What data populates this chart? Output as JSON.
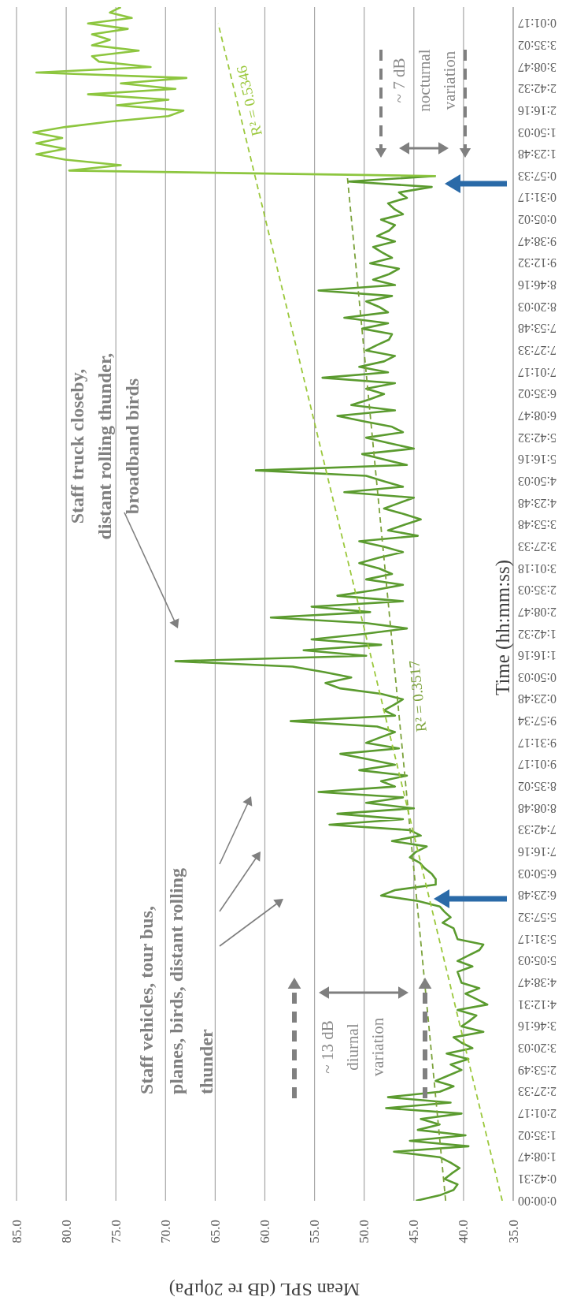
{
  "chart_data": {
    "type": "line",
    "orientation": "horizontal",
    "xlabel": "Mean SPL (dB re 20μPa)",
    "ylabel": "Time (hh:mm:ss)",
    "categories": [
      null,
      null,
      null,
      "0:01:17",
      null,
      null,
      null,
      "3:35:02",
      null,
      null,
      null,
      "3:08:47",
      null,
      null,
      null,
      "2:42:32",
      null,
      null,
      null,
      "2:16:16",
      null,
      null,
      null,
      "1:50:03",
      null,
      null,
      null,
      "1:23:48",
      null,
      null,
      null,
      "0:57:33",
      null,
      null,
      null,
      "0:31:17",
      null,
      null,
      null,
      "0:05:02",
      null,
      null,
      null,
      "9:38:47",
      null,
      null,
      null,
      "9:12:32",
      null,
      null,
      null,
      "8:46:16",
      null,
      null,
      null,
      "8:20:03",
      null,
      null,
      null,
      "7:53:48",
      null,
      null,
      null,
      "7:27:33",
      null,
      null,
      null,
      "7:01:17",
      null,
      null,
      null,
      "6:35:02",
      null,
      null,
      null,
      "6:08:47",
      null,
      null,
      null,
      "5:42:32",
      null,
      null,
      null,
      "5:16:16",
      null,
      null,
      null,
      "4:50:03",
      null,
      null,
      null,
      "4:23:48",
      null,
      null,
      null,
      "3:53:48",
      null,
      null,
      null,
      "3:27:33",
      null,
      null,
      null,
      "3:01:18",
      null,
      null,
      null,
      "2:35:03",
      null,
      null,
      null,
      "2:08:47",
      null,
      null,
      null,
      "1:42:32",
      null,
      null,
      null,
      "1:16:16",
      null,
      null,
      null,
      "0:50:03",
      null,
      null,
      null,
      "0:23:48",
      null,
      null,
      null,
      "9:57:34",
      null,
      null,
      null,
      "9:31:17",
      null,
      null,
      null,
      "9:01:17",
      null,
      null,
      null,
      "8:35:02",
      null,
      null,
      null,
      "8:08:48",
      null,
      null,
      null,
      "7:42:33",
      null,
      null,
      null,
      "7:16:16",
      null,
      null,
      null,
      "6:50:03",
      null,
      null,
      null,
      "6:23:48",
      null,
      null,
      null,
      "5:57:32",
      null,
      null,
      null,
      "5:31:17",
      null,
      null,
      null,
      "5:05:03",
      null,
      null,
      null,
      "4:38:47",
      null,
      null,
      null,
      "4:12:31",
      null,
      null,
      null,
      "3:46:16",
      null,
      null,
      null,
      "3:20:03",
      null,
      null,
      null,
      "2:53:49",
      null,
      null,
      null,
      "2:27:33",
      null,
      null,
      null,
      "2:01:17",
      null,
      null,
      null,
      "1:35:02",
      null,
      null,
      null,
      "1:08:47",
      null,
      null,
      null,
      "0:42:31",
      null,
      null,
      null,
      "0:00:00"
    ],
    "xlim": [
      85,
      35
    ],
    "xticks": [
      {
        "value": 85,
        "label": "85.0"
      },
      {
        "value": 80,
        "label": "80.0"
      },
      {
        "value": 75,
        "label": "75.0"
      },
      {
        "value": 70,
        "label": "70.0"
      },
      {
        "value": 65,
        "label": "65.0"
      },
      {
        "value": 60,
        "label": "60.0"
      },
      {
        "value": 55,
        "label": "55.0"
      },
      {
        "value": 50,
        "label": "50.0"
      },
      {
        "value": 45,
        "label": "45.0"
      },
      {
        "value": 40,
        "label": "40.0"
      },
      {
        "value": 35,
        "label": "35.0"
      }
    ],
    "grid": "x",
    "marker": "none",
    "series": [
      {
        "color": "#5b9b2f",
        "line_style": "solid",
        "values": [
          null,
          null,
          null,
          null,
          null,
          null,
          null,
          null,
          null,
          null,
          null,
          null,
          null,
          null,
          null,
          null,
          null,
          null,
          null,
          null,
          null,
          null,
          null,
          null,
          null,
          null,
          null,
          null,
          null,
          null,
          null,
          42.8,
          51.6,
          43.2,
          46.5,
          45.7,
          47.6,
          47.0,
          46.1,
          48.3,
          46.9,
          47.5,
          48.7,
          46.9,
          49.1,
          48.2,
          47.2,
          49.4,
          46.5,
          47.5,
          49.1,
          46.9,
          54.6,
          47.2,
          49.8,
          48.5,
          47.6,
          52.0,
          47.6,
          50.2,
          47.2,
          47.5,
          48.7,
          49.8,
          46.9,
          48.0,
          50.5,
          47.6,
          54.2,
          46.9,
          49.8,
          48.0,
          49.5,
          51.3,
          46.9,
          52.7,
          50.0,
          47.2,
          46.1,
          49.8,
          47.5,
          45.0,
          50.2,
          48.0,
          45.7,
          60.9,
          49.8,
          48.0,
          46.1,
          52.0,
          45.0,
          46.5,
          48.0,
          46.0,
          44.3,
          46.0,
          47.6,
          44.6,
          50.5,
          48.0,
          46.1,
          48.5,
          50.5,
          48.5,
          47.2,
          49.8,
          46.1,
          49.1,
          52.7,
          46.1,
          55.3,
          49.4,
          59.4,
          49.8,
          45.7,
          50.0,
          55.3,
          48.3,
          56.1,
          49.8,
          69.0,
          57.2,
          54.0,
          51.3,
          53.9,
          52.4,
          48.3,
          46.1,
          47.0,
          48.0,
          46.9,
          57.4,
          48.7,
          46.9,
          48.4,
          49.8,
          46.5,
          52.4,
          49.6,
          46.9,
          50.5,
          45.7,
          48.3,
          46.9,
          54.6,
          46.1,
          49.8,
          45.0,
          52.7,
          46.1,
          53.5,
          45.4,
          44.3,
          47.2,
          43.7,
          44.8,
          45.4,
          44.4,
          43.9,
          43.2,
          42.8,
          42.8,
          46.9,
          48.3,
          44.6,
          42.4,
          41.9,
          41.3,
          42.1,
          41.0,
          40.8,
          40.6,
          38.0,
          38.4,
          39.5,
          40.6,
          39.1,
          40.6,
          40.4,
          40.2,
          38.4,
          39.8,
          38.7,
          37.6,
          40.6,
          38.7,
          39.4,
          40.2,
          38.0,
          41.0,
          40.2,
          39.1,
          41.7,
          39.5,
          41.3,
          40.2,
          41.5,
          42.8,
          41.0,
          42.4,
          47.6,
          41.3,
          47.8,
          40.2,
          44.3,
          42.4,
          44.6,
          39.8,
          45.4,
          39.5,
          47.0,
          42.4,
          41.3,
          40.4,
          41.2,
          41.9,
          40.6,
          41.0,
          42.4,
          44.8
        ]
      },
      {
        "color": "#8dc63f",
        "line_style": "solid",
        "values": [
          74.5,
          75.6,
          73.4,
          77.8,
          73.8,
          77.4,
          75.6,
          77.4,
          72.7,
          77.4,
          76.7,
          71.5,
          83.0,
          67.9,
          74.5,
          69.0,
          77.8,
          69.7,
          74.9,
          68.2,
          69.7,
          75.6,
          80.1,
          83.3,
          80.4,
          83.0,
          80.1,
          83.0,
          80.1,
          74.5,
          79.7,
          42.8,
          null,
          null,
          null,
          null,
          null,
          null,
          null,
          null,
          null,
          null,
          null,
          null,
          null,
          null,
          null,
          null,
          null,
          null,
          null,
          null,
          null,
          null,
          null,
          null,
          null,
          null,
          null,
          null,
          null,
          null,
          null,
          null,
          null,
          null,
          null,
          null,
          null,
          null,
          null,
          null,
          null,
          null,
          null,
          null,
          null,
          null,
          null,
          null,
          null,
          null,
          null,
          null,
          null,
          null,
          null,
          null,
          null,
          null,
          null,
          null,
          null,
          null,
          null,
          null,
          null,
          null,
          null,
          null,
          null,
          null,
          null,
          null,
          null,
          null,
          null,
          null,
          null,
          null,
          null,
          null,
          null,
          null,
          null,
          null,
          null,
          null,
          null,
          null,
          null,
          null,
          null,
          null,
          null,
          null,
          null,
          null,
          null,
          null,
          null,
          null,
          null,
          null,
          null,
          null,
          null,
          null,
          null,
          null,
          null,
          null,
          null,
          null,
          null,
          null,
          null,
          null,
          null,
          null,
          null,
          null,
          null,
          null,
          null,
          null,
          null,
          null,
          null,
          null,
          null,
          null,
          null,
          null,
          null,
          null,
          null,
          null,
          null,
          null,
          null,
          null,
          null,
          null,
          null,
          null,
          null,
          null,
          null,
          null,
          null,
          null,
          null,
          null,
          null,
          null,
          null,
          null,
          null,
          null,
          null,
          null,
          null,
          null,
          null,
          null,
          null,
          null,
          null,
          null,
          null,
          null,
          null,
          null,
          null,
          null,
          null,
          null,
          null,
          null,
          null,
          null,
          null,
          null,
          null,
          null,
          null,
          null,
          null,
          null
        ]
      },
      {
        "type": "line",
        "color": "#7ba23a",
        "line_style": "dashed",
        "x": [
          "0:00:00",
          "0:57:33"
        ],
        "values": [
          41.8,
          51.7
        ]
      },
      {
        "type": "line",
        "color": "#9bc83c",
        "line_style": "dashed",
        "x": [
          "0:00:00",
          "0:01:17"
        ],
        "values": [
          36.1,
          64.7
        ]
      }
    ],
    "annotations": [
      "Staff vehicles, tour bus, planes, birds, distant rolling thunder",
      "Staff truck closeby, distant rolling thunder, broadband birds",
      "~ 13 dB diurnal variation",
      "~ 7 dB nocturnal variation",
      "R² = 0.5346",
      "R² = 0.3517"
    ]
  }
}
